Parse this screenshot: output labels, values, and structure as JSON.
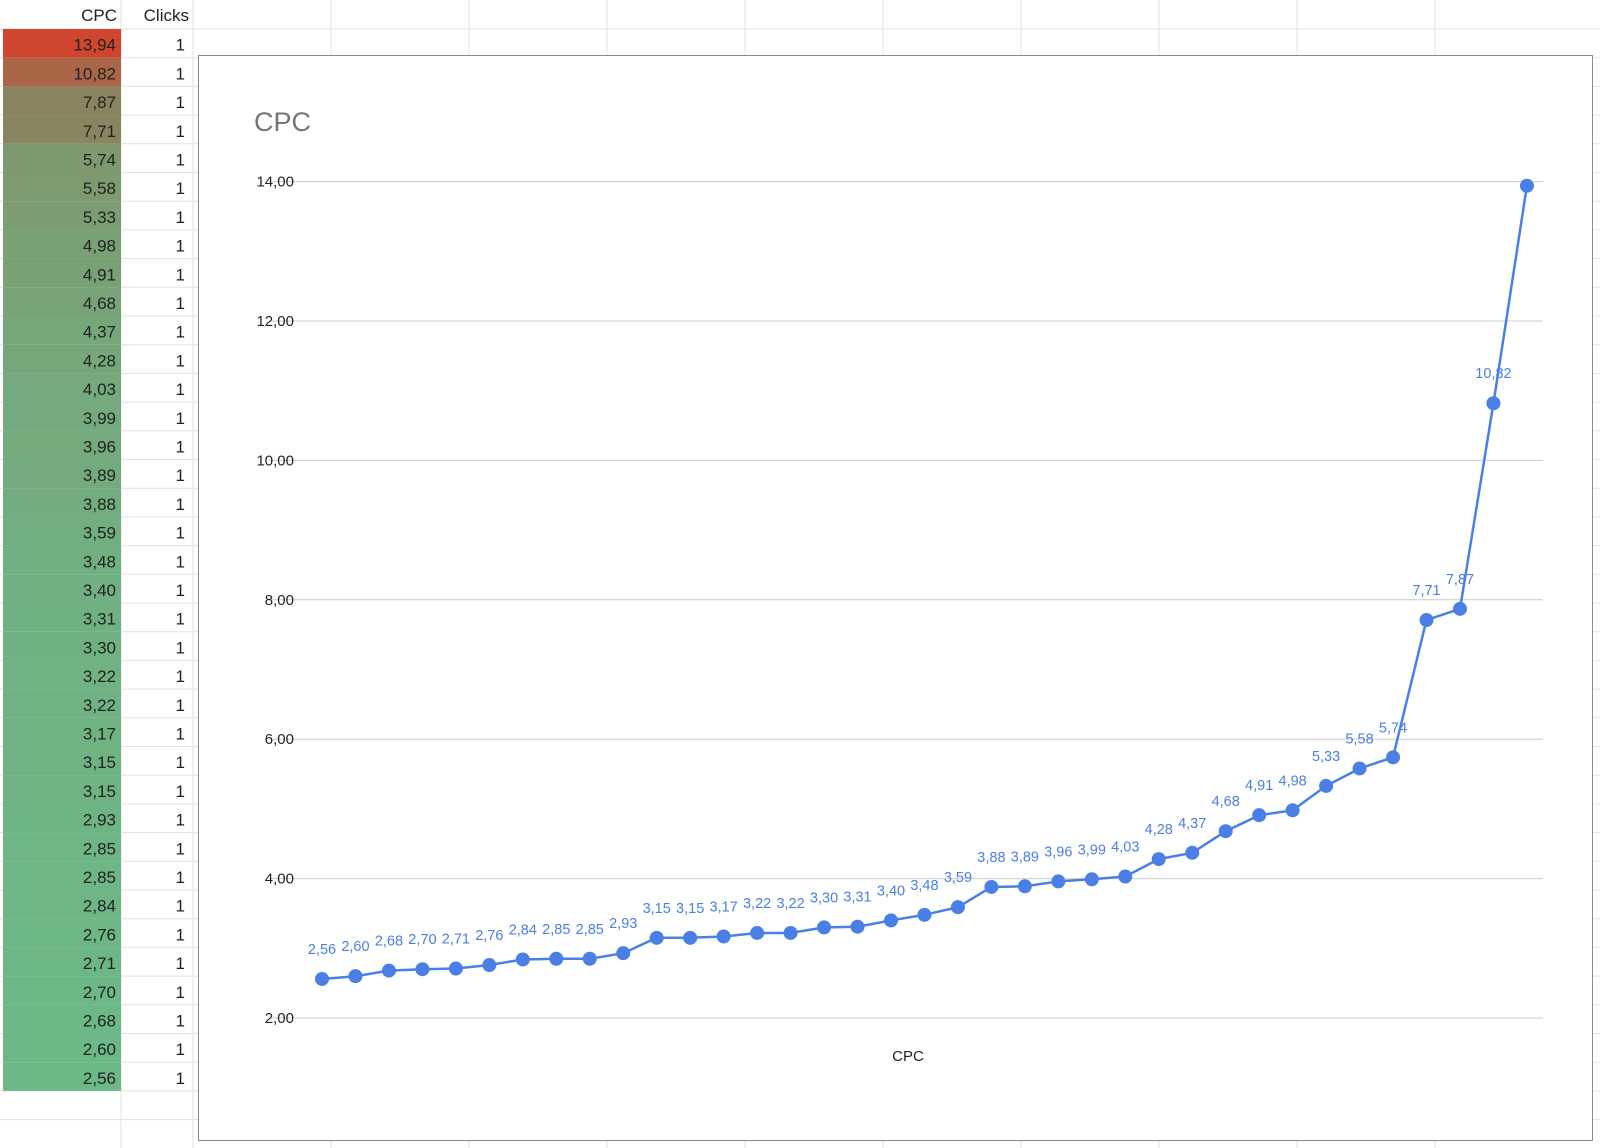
{
  "sheet": {
    "headers": {
      "cpc": "CPC",
      "clicks": "Clicks"
    },
    "rows": [
      {
        "cpc": "13,94",
        "clicks": "1"
      },
      {
        "cpc": "10,82",
        "clicks": "1"
      },
      {
        "cpc": "7,87",
        "clicks": "1"
      },
      {
        "cpc": "7,71",
        "clicks": "1"
      },
      {
        "cpc": "5,74",
        "clicks": "1"
      },
      {
        "cpc": "5,58",
        "clicks": "1"
      },
      {
        "cpc": "5,33",
        "clicks": "1"
      },
      {
        "cpc": "4,98",
        "clicks": "1"
      },
      {
        "cpc": "4,91",
        "clicks": "1"
      },
      {
        "cpc": "4,68",
        "clicks": "1"
      },
      {
        "cpc": "4,37",
        "clicks": "1"
      },
      {
        "cpc": "4,28",
        "clicks": "1"
      },
      {
        "cpc": "4,03",
        "clicks": "1"
      },
      {
        "cpc": "3,99",
        "clicks": "1"
      },
      {
        "cpc": "3,96",
        "clicks": "1"
      },
      {
        "cpc": "3,89",
        "clicks": "1"
      },
      {
        "cpc": "3,88",
        "clicks": "1"
      },
      {
        "cpc": "3,59",
        "clicks": "1"
      },
      {
        "cpc": "3,48",
        "clicks": "1"
      },
      {
        "cpc": "3,40",
        "clicks": "1"
      },
      {
        "cpc": "3,31",
        "clicks": "1"
      },
      {
        "cpc": "3,30",
        "clicks": "1"
      },
      {
        "cpc": "3,22",
        "clicks": "1"
      },
      {
        "cpc": "3,22",
        "clicks": "1"
      },
      {
        "cpc": "3,17",
        "clicks": "1"
      },
      {
        "cpc": "3,15",
        "clicks": "1"
      },
      {
        "cpc": "3,15",
        "clicks": "1"
      },
      {
        "cpc": "2,93",
        "clicks": "1"
      },
      {
        "cpc": "2,85",
        "clicks": "1"
      },
      {
        "cpc": "2,85",
        "clicks": "1"
      },
      {
        "cpc": "2,84",
        "clicks": "1"
      },
      {
        "cpc": "2,76",
        "clicks": "1"
      },
      {
        "cpc": "2,71",
        "clicks": "1"
      },
      {
        "cpc": "2,70",
        "clicks": "1"
      },
      {
        "cpc": "2,68",
        "clicks": "1"
      },
      {
        "cpc": "2,60",
        "clicks": "1"
      },
      {
        "cpc": "2,56",
        "clicks": "1"
      }
    ],
    "colors": {
      "low": "#6cb988",
      "mid": "#8c7f5c",
      "high": "#d0452e",
      "grid": "#e1e1e1"
    }
  },
  "chart_data": {
    "type": "line",
    "title": "CPC",
    "xlabel": "CPC",
    "ylabel": "",
    "ylim": [
      1.5,
      14
    ],
    "yticks": [
      2,
      4,
      6,
      8,
      10,
      12,
      14
    ],
    "ytick_labels": [
      "2,00",
      "4,00",
      "6,00",
      "8,00",
      "10,00",
      "12,00",
      "14,00"
    ],
    "grid": true,
    "legend": "none",
    "line_color": "#4a7fe6",
    "series": [
      {
        "values": [
          2.56,
          2.6,
          2.68,
          2.7,
          2.71,
          2.76,
          2.84,
          2.85,
          2.85,
          2.93,
          3.15,
          3.15,
          3.17,
          3.22,
          3.22,
          3.3,
          3.31,
          3.4,
          3.48,
          3.59,
          3.88,
          3.89,
          3.96,
          3.99,
          4.03,
          4.28,
          4.37,
          4.68,
          4.91,
          4.98,
          5.33,
          5.58,
          5.74,
          7.71,
          7.87,
          10.82,
          13.94
        ],
        "labels": [
          "2,56",
          "2,60",
          "2,68",
          "2,70",
          "2,71",
          "2,76",
          "2,84",
          "2,85",
          "2,85",
          "2,93",
          "3,15",
          "3,15",
          "3,17",
          "3,22",
          "3,22",
          "3,30",
          "3,31",
          "3,40",
          "3,48",
          "3,59",
          "3,88",
          "3,89",
          "3,96",
          "3,99",
          "4,03",
          "4,28",
          "4,37",
          "4,68",
          "4,91",
          "4,98",
          "5,33",
          "5,58",
          "5,74",
          "7,71",
          "7,87",
          "10,82",
          ""
        ]
      }
    ]
  }
}
